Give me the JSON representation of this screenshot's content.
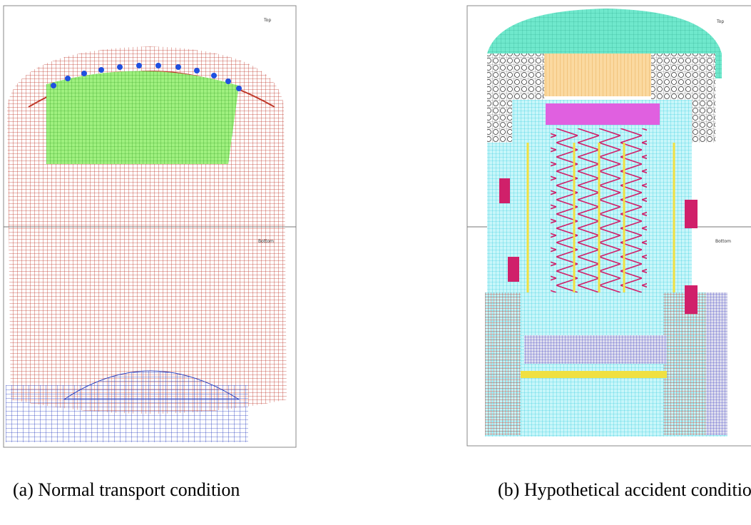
{
  "panels": [
    {
      "top_label": "Top",
      "bottom_label": "Bottom",
      "caption": "(a) Normal transport condition"
    },
    {
      "top_label": "Top",
      "bottom_label": "Bottom",
      "caption": "(b) Hypothetical accident condition"
    }
  ]
}
